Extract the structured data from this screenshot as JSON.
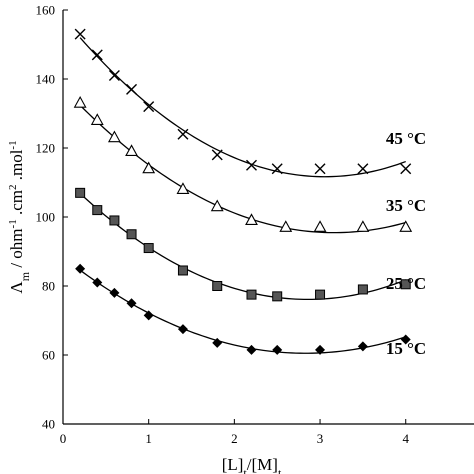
{
  "chart_data": {
    "type": "scatter",
    "xlabel": "[L]t/[M]t",
    "ylabel": "Λm / ohm⁻¹ .cm² .mol⁻¹",
    "xlim": [
      0,
      4.4
    ],
    "ylim": [
      40,
      160
    ],
    "xticks": [
      0,
      1,
      2,
      3,
      4
    ],
    "yticks": [
      40,
      60,
      80,
      100,
      120,
      140,
      160
    ],
    "grid": false,
    "legend": "inline labels",
    "series": [
      {
        "name": "45 °C",
        "marker": "x",
        "x": [
          0.2,
          0.4,
          0.6,
          0.8,
          1.0,
          1.4,
          1.8,
          2.2,
          2.5,
          3.0,
          3.5,
          4.0
        ],
        "y": [
          153,
          147,
          141,
          137,
          132,
          124,
          118,
          115,
          114,
          114,
          114,
          114
        ]
      },
      {
        "name": "35 °C",
        "marker": "triangle",
        "x": [
          0.2,
          0.4,
          0.6,
          0.8,
          1.0,
          1.4,
          1.8,
          2.2,
          2.6,
          3.0,
          3.5,
          4.0
        ],
        "y": [
          133,
          128,
          123,
          119,
          114,
          108,
          103,
          99,
          97,
          97,
          97,
          97
        ]
      },
      {
        "name": "25 °C",
        "marker": "square",
        "x": [
          0.2,
          0.4,
          0.6,
          0.8,
          1.0,
          1.4,
          1.8,
          2.2,
          2.5,
          3.0,
          3.5,
          4.0
        ],
        "y": [
          107,
          102,
          99,
          95,
          91,
          84.5,
          80,
          77.5,
          77,
          77.5,
          79,
          80.5
        ]
      },
      {
        "name": "15 °C",
        "marker": "diamond",
        "x": [
          0.2,
          0.4,
          0.6,
          0.8,
          1.0,
          1.4,
          1.8,
          2.2,
          2.5,
          3.0,
          3.5,
          4.0
        ],
        "y": [
          85,
          81,
          78,
          75,
          71.5,
          67.5,
          63.5,
          61.5,
          61.5,
          61.5,
          62.5,
          64.5
        ]
      }
    ]
  }
}
